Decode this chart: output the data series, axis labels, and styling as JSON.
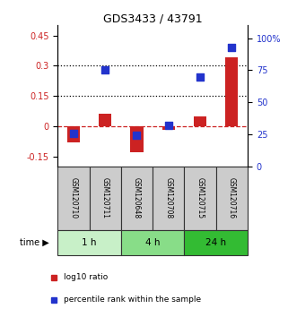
{
  "title": "GDS3433 / 43791",
  "samples": [
    "GSM120710",
    "GSM120711",
    "GSM120648",
    "GSM120708",
    "GSM120715",
    "GSM120716"
  ],
  "log10_ratio": [
    -0.08,
    0.06,
    -0.13,
    -0.02,
    0.05,
    0.34
  ],
  "percentile_rank": [
    26,
    75,
    24,
    32,
    70,
    93
  ],
  "time_groups": [
    {
      "label": "1 h",
      "span": [
        0,
        2
      ],
      "color": "#c8f0c8"
    },
    {
      "label": "4 h",
      "span": [
        2,
        4
      ],
      "color": "#88dd88"
    },
    {
      "label": "24 h",
      "span": [
        4,
        6
      ],
      "color": "#33bb33"
    }
  ],
  "bar_color_red": "#cc2222",
  "dot_color_blue": "#2233cc",
  "left_ylim": [
    -0.2,
    0.5
  ],
  "right_ylim": [
    0,
    110
  ],
  "left_yticks": [
    -0.15,
    0,
    0.15,
    0.3,
    0.45
  ],
  "right_yticks": [
    0,
    25,
    50,
    75,
    100
  ],
  "hline_y": [
    0.15,
    0.3
  ],
  "dashed_zero_color": "#cc2222",
  "sample_box_color": "#cccccc",
  "sample_box_edge": "#333333",
  "background": "#ffffff",
  "legend_red_label": "log10 ratio",
  "legend_blue_label": "percentile rank within the sample",
  "bar_width": 0.4,
  "dot_size": 30
}
